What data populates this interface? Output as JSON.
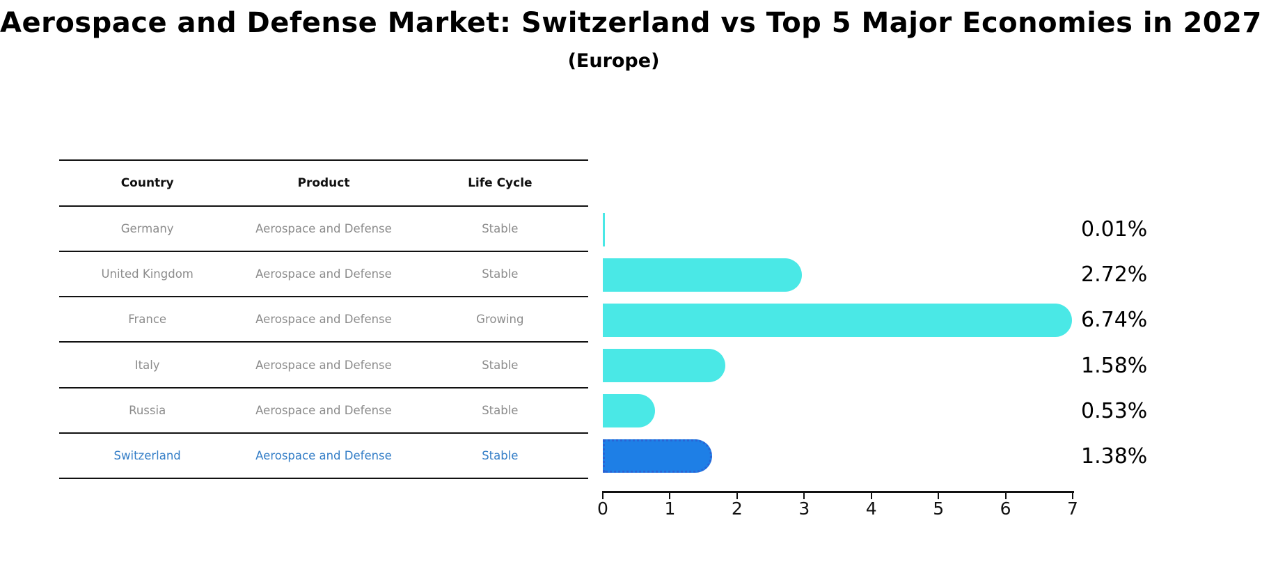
{
  "header": {
    "title": "Aerospace and Defense Market: Switzerland vs Top 5 Major Economies in 2027",
    "subtitle": "(Europe)"
  },
  "table": {
    "columns": [
      "Country",
      "Product",
      "Life Cycle"
    ],
    "rows": [
      {
        "country": "Germany",
        "product": "Aerospace and Defense",
        "life_cycle": "Stable",
        "highlight": false
      },
      {
        "country": "United Kingdom",
        "product": "Aerospace and Defense",
        "life_cycle": "Stable",
        "highlight": false
      },
      {
        "country": "France",
        "product": "Aerospace and Defense",
        "life_cycle": "Growing",
        "highlight": false
      },
      {
        "country": "Italy",
        "product": "Aerospace and Defense",
        "life_cycle": "Stable",
        "highlight": false
      },
      {
        "country": "Russia",
        "product": "Aerospace and Defense",
        "life_cycle": "Stable",
        "highlight": false
      },
      {
        "country": "Switzerland",
        "product": "Aerospace and Defense",
        "life_cycle": "Stable",
        "highlight": true
      }
    ]
  },
  "chart_data": {
    "type": "bar",
    "orientation": "horizontal",
    "title": "Aerospace and Defense Market: Switzerland vs Top 5 Major Economies in 2027 (Europe)",
    "categories": [
      "Germany",
      "United Kingdom",
      "France",
      "Italy",
      "Russia",
      "Switzerland"
    ],
    "values": [
      0.01,
      2.72,
      6.74,
      1.58,
      0.53,
      1.38
    ],
    "value_labels": [
      "0.01%",
      "2.72%",
      "6.74%",
      "1.58%",
      "0.53%",
      "1.38%"
    ],
    "xlabel": "",
    "ylabel": "",
    "xlim": [
      0,
      7
    ],
    "x_ticks": [
      "0",
      "1",
      "2",
      "3",
      "4",
      "5",
      "6",
      "7"
    ],
    "grid": false,
    "legend": false,
    "highlight_index": 5
  },
  "colors": {
    "bar": "#4AE8E6",
    "highlight_bar": "#1E7FE6",
    "highlight_bar_border": "#2A63D4",
    "highlight_text": "#347EC7",
    "table_text": "#8C8C8C",
    "header_text": "#111111",
    "value_label_text": "#000000",
    "axis": "#111111"
  }
}
